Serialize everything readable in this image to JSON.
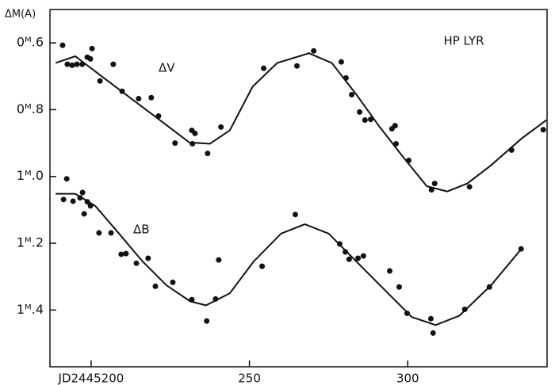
{
  "chart_data": {
    "type": "scatter",
    "title": "HP LYR",
    "y_label": "ΔM(A)",
    "xlim": [
      187,
      344
    ],
    "ylim": [
      1.57,
      0.5
    ],
    "xticks": [
      {
        "value": 200,
        "label": "JD2445200"
      },
      250,
      300
    ],
    "yticks": [
      {
        "value": 0.6,
        "label": "0ᴹ.6"
      },
      {
        "value": 0.8,
        "label": "0ᴹ.8"
      },
      {
        "value": 1.0,
        "label": "1ᴹ.0"
      },
      {
        "value": 1.2,
        "label": "1ᴹ.2"
      },
      {
        "value": 1.4,
        "label": "1ᴹ.4"
      }
    ],
    "series": [
      {
        "name": "ΔV",
        "color": "#111111",
        "x": [
          191,
          192.5,
          194,
          195.5,
          197.2,
          198.8,
          199.8,
          200.3,
          202.8,
          207,
          209.8,
          215,
          219,
          221.3,
          226.5,
          231.8,
          232.8,
          232,
          236.8,
          241,
          254.5,
          265,
          270.3,
          279,
          280.5,
          282.3,
          284.8,
          286.5,
          288.3,
          295,
          296,
          296.3,
          300.3,
          307.5,
          308.5,
          319.5,
          332.8,
          342.8
        ],
        "values": [
          0.607,
          0.664,
          0.667,
          0.664,
          0.664,
          0.643,
          0.648,
          0.617,
          0.714,
          0.664,
          0.745,
          0.767,
          0.764,
          0.819,
          0.9,
          0.862,
          0.871,
          0.902,
          0.931,
          0.852,
          0.676,
          0.669,
          0.624,
          0.657,
          0.705,
          0.755,
          0.807,
          0.831,
          0.829,
          0.857,
          0.848,
          0.902,
          0.952,
          1.04,
          1.021,
          1.031,
          0.921,
          0.86
        ]
      },
      {
        "name": "ΔB",
        "color": "#111111",
        "x": [
          191.3,
          192.3,
          194.3,
          196.5,
          197.3,
          197.8,
          198.8,
          199.8,
          202.5,
          206.3,
          209.5,
          211,
          214.3,
          218,
          220.3,
          225.8,
          231.8,
          236.5,
          239.3,
          240.3,
          254,
          264.5,
          278.5,
          280.3,
          281.5,
          284.3,
          286,
          294.3,
          297.3,
          299.8,
          307.3,
          308,
          318,
          325.8,
          335.8
        ],
        "values": [
          1.069,
          1.007,
          1.074,
          1.064,
          1.048,
          1.112,
          1.076,
          1.088,
          1.169,
          1.169,
          1.233,
          1.231,
          1.26,
          1.245,
          1.329,
          1.317,
          1.369,
          1.433,
          1.367,
          1.25,
          1.269,
          1.114,
          1.202,
          1.226,
          1.248,
          1.245,
          1.238,
          1.283,
          1.331,
          1.41,
          1.426,
          1.469,
          1.398,
          1.331,
          1.217
        ]
      }
    ],
    "fits": [
      {
        "color": "#111111",
        "x": [
          188.8,
          195,
          211,
          221,
          231,
          237.5,
          243.8,
          251,
          258.8,
          268.8,
          276,
          283.8,
          291,
          298.8,
          306,
          312.5,
          318.8,
          326,
          336,
          343.8
        ],
        "values": [
          0.66,
          0.64,
          0.755,
          0.826,
          0.898,
          0.902,
          0.862,
          0.731,
          0.66,
          0.631,
          0.66,
          0.755,
          0.85,
          0.945,
          1.029,
          1.045,
          1.021,
          0.969,
          0.886,
          0.831
        ]
      },
      {
        "color": "#111111",
        "x": [
          188.8,
          195,
          201.3,
          208.8,
          216.3,
          223.8,
          231.3,
          236.3,
          243.8,
          251.3,
          260,
          267.5,
          275,
          283.8,
          293.8,
          301.3,
          308.8,
          316.3,
          326.3,
          336.3
        ],
        "values": [
          1.052,
          1.052,
          1.088,
          1.171,
          1.255,
          1.326,
          1.374,
          1.386,
          1.35,
          1.255,
          1.171,
          1.143,
          1.171,
          1.255,
          1.35,
          1.421,
          1.445,
          1.417,
          1.326,
          1.212
        ]
      }
    ]
  }
}
